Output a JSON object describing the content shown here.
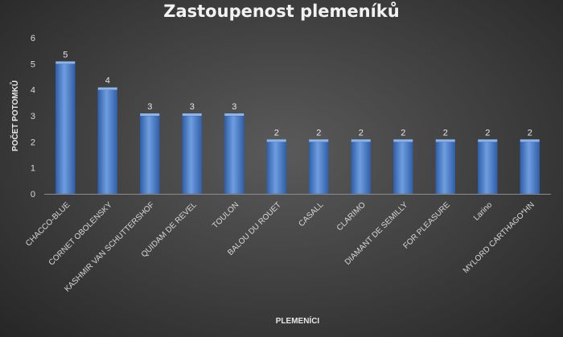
{
  "chart_data": {
    "type": "bar",
    "title": "Zastoupenost plemeníků",
    "xlabel": "PLEMENÍCI",
    "ylabel": "POČET POTOMKŮ",
    "categories": [
      "CHACCO-BLUE",
      "CORNET OBOLENSKY",
      "KASHMIR VAN SCHUTTERSHOF",
      "QUIDAM DE REVEL",
      "TOULON",
      "BALOU DU ROUET",
      "CASALL",
      "CLARIMO",
      "DIAMANT DE SEMILLY",
      "FOR PLEASURE",
      "Larino",
      "MYLORD CARTHAGO*HN"
    ],
    "values": [
      5,
      4,
      3,
      3,
      3,
      2,
      2,
      2,
      2,
      2,
      2,
      2
    ],
    "ylim": [
      0,
      6
    ],
    "yticks": [
      0,
      1,
      2,
      3,
      4,
      5,
      6
    ],
    "grid": false,
    "legend": "none",
    "colors": {
      "bar": "#4f81c7",
      "bar_light": "#8fb4ea",
      "bar_dark": "#2f5fa8",
      "text": "#d9d9d9"
    }
  }
}
